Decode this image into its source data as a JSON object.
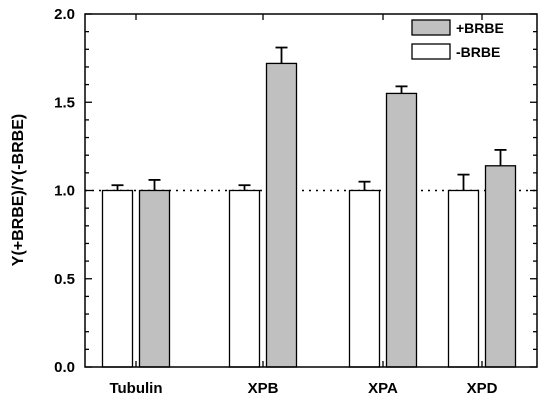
{
  "chart_data": {
    "type": "bar",
    "categories": [
      "Tubulin",
      "XPB",
      "XPA",
      "XPD"
    ],
    "series": [
      {
        "name": "-BRBE",
        "color": "#ffffff",
        "values": [
          1.0,
          1.0,
          1.0,
          1.0
        ],
        "errors": [
          0.03,
          0.03,
          0.05,
          0.09
        ]
      },
      {
        "name": "+BRBE",
        "color": "#c0c0c0",
        "values": [
          1.0,
          1.72,
          1.55,
          1.14
        ],
        "errors": [
          0.06,
          0.09,
          0.04,
          0.09
        ]
      }
    ],
    "xlabel": "",
    "ylabel": "Y(+BRBE)/Y(-BRBE)",
    "ylim": [
      0.0,
      2.0
    ],
    "yticks": [
      "0.0",
      "0.5",
      "1.0",
      "1.5",
      "2.0"
    ],
    "reference_line": {
      "y": 1.0,
      "style": "dotted"
    },
    "legend": {
      "position": "top-right",
      "order": [
        "+BRBE",
        "-BRBE"
      ]
    },
    "grid": false
  }
}
